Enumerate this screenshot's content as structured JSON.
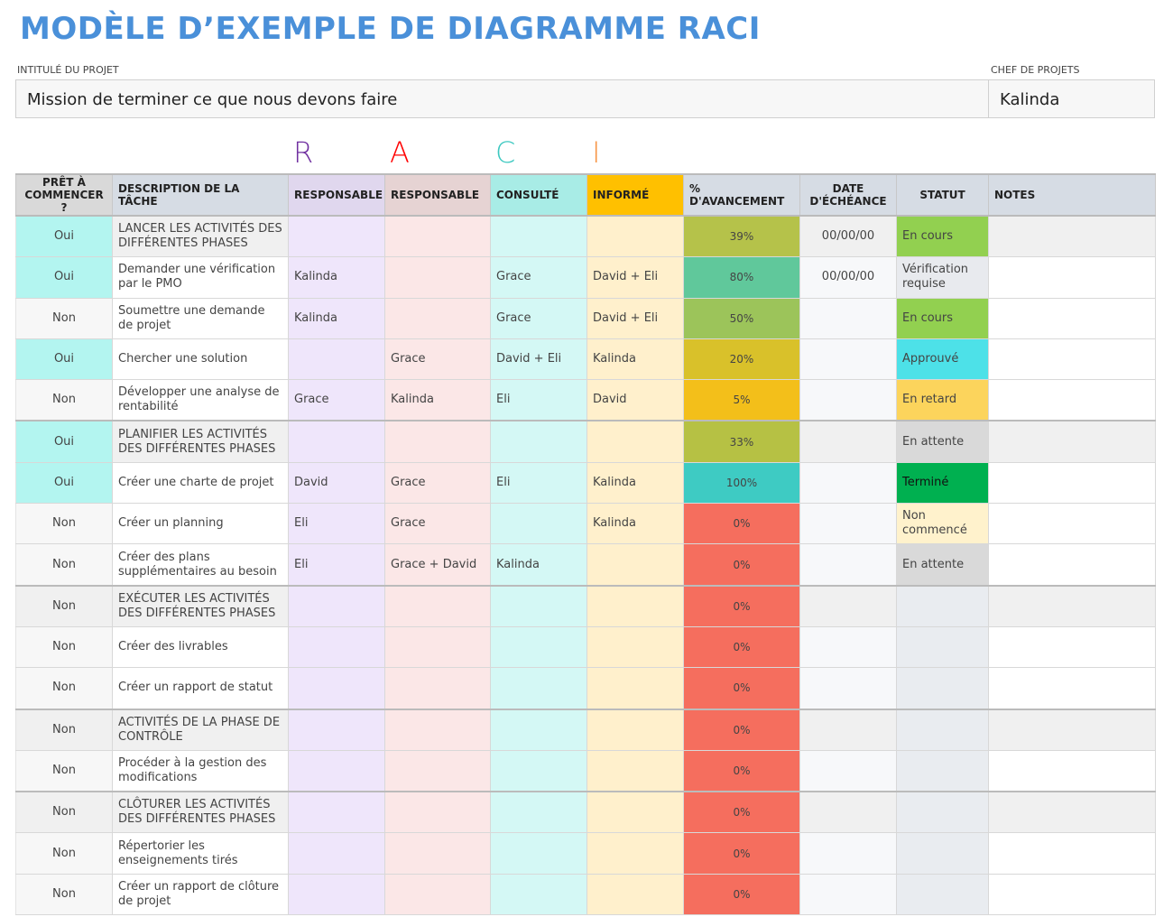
{
  "title": "MODÈLE D’EXEMPLE DE DIAGRAMME RACI",
  "project": {
    "label": "INTITULÉ DU PROJET",
    "value": "Mission de terminer ce que nous devons faire"
  },
  "manager": {
    "label": "CHEF DE PROJETS",
    "value": "Kalinda"
  },
  "raci_letters": [
    {
      "text": "R",
      "color": "#7030a0"
    },
    {
      "text": "A",
      "color": "#ff0000"
    },
    {
      "text": "C",
      "color": "#3cc8c0"
    },
    {
      "text": "I",
      "color": "#f79646"
    }
  ],
  "headers": [
    "PRÊT À COMMENCER ?",
    "DESCRIPTION DE LA TÂCHE",
    "RESPONSABLE",
    "RESPONSABLE",
    "CONSULTÉ",
    "INFORMÉ",
    "% D'AVANCEMENT",
    "DATE D'ÉCHÉANCE",
    "STATUT",
    "NOTES"
  ],
  "rows": [
    {
      "ready": "Oui",
      "task": "LANCER LES ACTIVITÉS DES DIFFÉRENTES PHASES",
      "phase": true,
      "r": "",
      "a": "",
      "c": "",
      "i": "",
      "progress": "39%",
      "date": "00/00/00",
      "status": "En cours",
      "notes": ""
    },
    {
      "ready": "Oui",
      "task": "Demander une vérification par le PMO",
      "r": "Kalinda",
      "a": "",
      "c": "Grace",
      "i": "David + Eli",
      "progress": "80%",
      "date": "00/00/00",
      "status": "Vérification requise",
      "notes": ""
    },
    {
      "ready": "Non",
      "task": "Soumettre une demande de projet",
      "r": "Kalinda",
      "a": "",
      "c": "Grace",
      "i": "David + Eli",
      "progress": "50%",
      "date": "",
      "status": "En cours",
      "notes": ""
    },
    {
      "ready": "Oui",
      "task": "Chercher une solution",
      "r": "",
      "a": "Grace",
      "c": "David + Eli",
      "i": "Kalinda",
      "progress": "20%",
      "date": "",
      "status": "Approuvé",
      "notes": ""
    },
    {
      "ready": "Non",
      "task": "Développer une analyse de rentabilité",
      "r": "Grace",
      "a": "Kalinda",
      "c": "Eli",
      "i": "David",
      "progress": "5%",
      "date": "",
      "status": "En retard",
      "notes": ""
    },
    {
      "ready": "Oui",
      "task": "PLANIFIER LES ACTIVITÉS DES DIFFÉRENTES PHASES",
      "phase": true,
      "r": "",
      "a": "",
      "c": "",
      "i": "",
      "progress": "33%",
      "date": "",
      "status": "En attente",
      "notes": ""
    },
    {
      "ready": "Oui",
      "task": "Créer une charte de projet",
      "r": "David",
      "a": "Grace",
      "c": "Eli",
      "i": "Kalinda",
      "progress": "100%",
      "date": "",
      "status": "Terminé",
      "notes": ""
    },
    {
      "ready": "Non",
      "task": "Créer un planning",
      "r": "Eli",
      "a": "Grace",
      "c": "",
      "i": "Kalinda",
      "progress": "0%",
      "date": "",
      "status": "Non commencé",
      "notes": ""
    },
    {
      "ready": "Non",
      "task": "Créer des plans supplémentaires au besoin",
      "r": "Eli",
      "a": "Grace + David",
      "c": "Kalinda",
      "i": "",
      "progress": "0%",
      "date": "",
      "status": "En attente",
      "notes": ""
    },
    {
      "ready": "Non",
      "task": "EXÉCUTER LES ACTIVITÉS DES DIFFÉRENTES PHASES",
      "phase": true,
      "r": "",
      "a": "",
      "c": "",
      "i": "",
      "progress": "0%",
      "date": "",
      "status": "",
      "notes": ""
    },
    {
      "ready": "Non",
      "task": "Créer des livrables",
      "r": "",
      "a": "",
      "c": "",
      "i": "",
      "progress": "0%",
      "date": "",
      "status": "",
      "notes": ""
    },
    {
      "ready": "Non",
      "task": "Créer un rapport de statut",
      "r": "",
      "a": "",
      "c": "",
      "i": "",
      "progress": "0%",
      "date": "",
      "status": "",
      "notes": ""
    },
    {
      "ready": "Non",
      "task": "ACTIVITÉS DE LA PHASE DE CONTRÔLE",
      "phase": true,
      "r": "",
      "a": "",
      "c": "",
      "i": "",
      "progress": "0%",
      "date": "",
      "status": "",
      "notes": ""
    },
    {
      "ready": "Non",
      "task": "Procéder à la gestion des modifications",
      "r": "",
      "a": "",
      "c": "",
      "i": "",
      "progress": "0%",
      "date": "",
      "status": "",
      "notes": ""
    },
    {
      "ready": "Non",
      "task": "CLÔTURER LES ACTIVITÉS DES DIFFÉRENTES PHASES",
      "phase": true,
      "r": "",
      "a": "",
      "c": "",
      "i": "",
      "progress": "0%",
      "date": "",
      "status": "",
      "notes": ""
    },
    {
      "ready": "Non",
      "task": "Répertorier les enseignements tirés",
      "r": "",
      "a": "",
      "c": "",
      "i": "",
      "progress": "0%",
      "date": "",
      "status": "",
      "notes": ""
    },
    {
      "ready": "Non",
      "task": "Créer un rapport de clôture de projet",
      "r": "",
      "a": "",
      "c": "",
      "i": "",
      "progress": "0%",
      "date": "",
      "status": "",
      "notes": ""
    }
  ],
  "colors": {
    "progress": {
      "0%": "#f56e5e",
      "5%": "#f3bf1a",
      "20%": "#d9c12a",
      "33%": "#b6c144",
      "39%": "#b5c24a",
      "50%": "#9cc45a",
      "80%": "#60c89b",
      "100%": "#3ecbc3"
    },
    "status": {
      "En cours": "#92d050",
      "Vérification requise": "#e8eaee",
      "Approuvé": "#4de1e8",
      "En retard": "#fcd45c",
      "En attente": "#d9d9d9",
      "Terminé": "#00b050",
      "Non commencé": "#fff2cc",
      "": "#e9ecf0"
    }
  }
}
